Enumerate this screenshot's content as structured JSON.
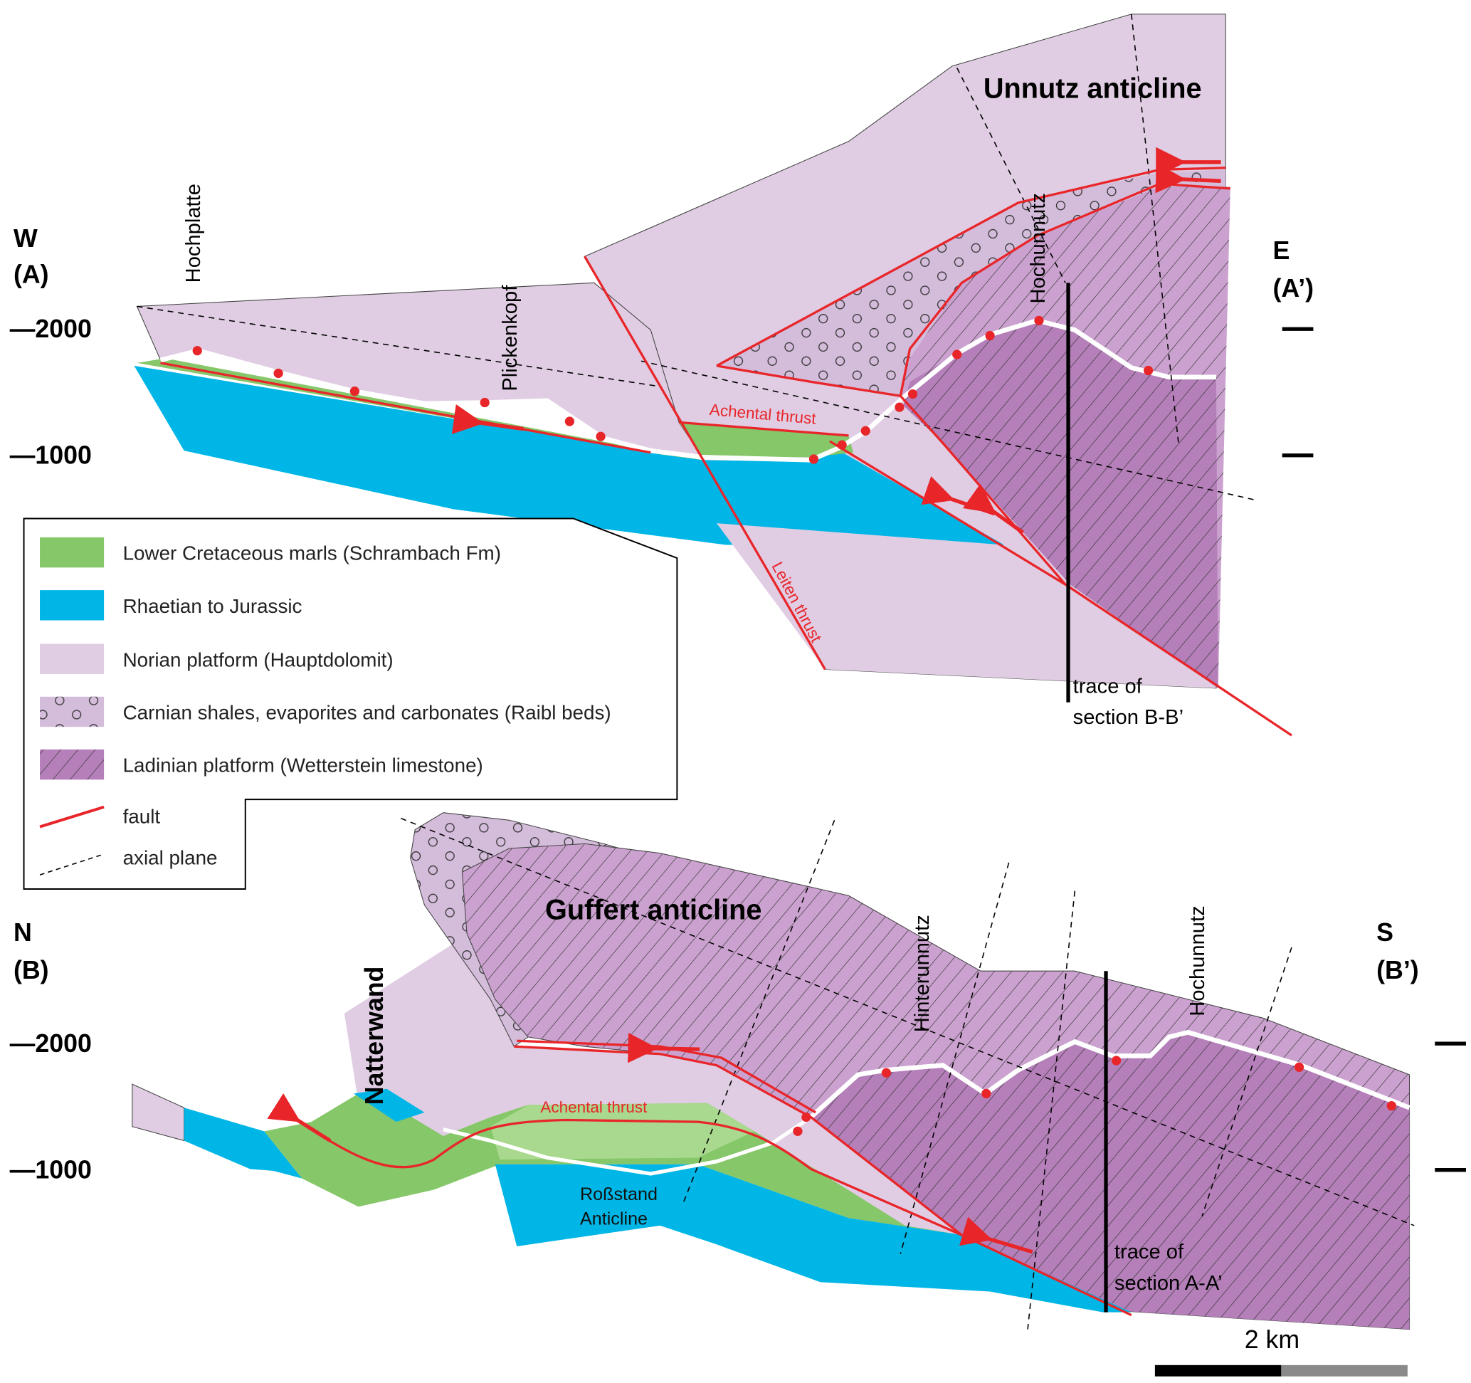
{
  "section_top": {
    "left_label": [
      "W",
      "(A)"
    ],
    "right_label": [
      "E",
      "(A’)"
    ],
    "depth_labels": [
      "—2000",
      "—1000"
    ],
    "structure_title": "Unnutz anticline",
    "peaks": [
      "Hochplatte",
      "Plickenkopf",
      "Hochunnutz"
    ],
    "fault_labels": [
      "Achental thrust",
      "Leiten thrust"
    ],
    "trace_label": [
      "trace of",
      "section B-B’"
    ]
  },
  "section_bottom": {
    "left_label": [
      "N",
      "(B)"
    ],
    "right_label": [
      "S",
      "(B’)"
    ],
    "depth_labels": [
      "—2000",
      "—1000"
    ],
    "structure_title": "Guffert anticline",
    "peaks": [
      "Natterwand",
      "Hinterunnutz",
      "Hochunnutz"
    ],
    "fault_labels": [
      "Achental thrust"
    ],
    "anticline_label": [
      "Roßstand",
      "Anticline"
    ],
    "trace_label": [
      "trace of",
      "section A-A’"
    ],
    "scale_label": "2 km"
  },
  "legend": {
    "items": [
      {
        "label": "Lower Cretaceous marls (Schrambach Fm)",
        "color": "#86c76a"
      },
      {
        "label": "Rhaetian to Jurassic",
        "color": "#00b6e6"
      },
      {
        "label": "Norian platform (Hauptdolomit)",
        "color": "#e0cde3"
      },
      {
        "label": "Carnian shales, evaporites and carbonates (Raibl beds)",
        "color": "#cfb3d6"
      },
      {
        "label": "Ladinian platform (Wetterstein limestone)",
        "color": "#b985bd"
      },
      {
        "label": "fault",
        "color": "#e8262a"
      },
      {
        "label": "axial plane",
        "color": "#000000"
      }
    ]
  }
}
